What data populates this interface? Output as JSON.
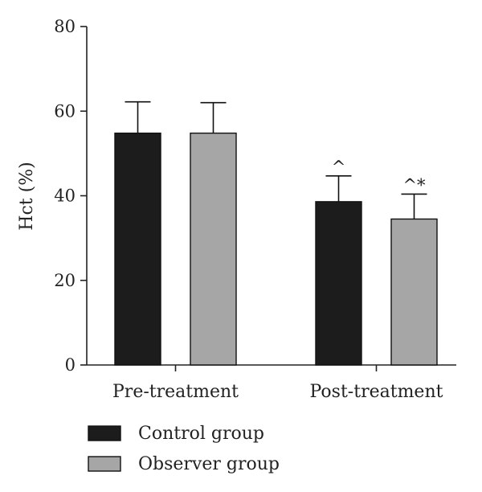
{
  "chart_data": {
    "type": "bar",
    "ylabel": "Hct (%)",
    "xlabel": "",
    "ylim": [
      0,
      80
    ],
    "yticks": [
      0,
      20,
      40,
      60,
      80
    ],
    "categories": [
      "Pre-treatment",
      "Post-treatment"
    ],
    "series": [
      {
        "name": "Control group",
        "color": "#1c1c1c",
        "values": [
          54.8,
          38.6
        ],
        "errors": [
          7.4,
          6.1
        ],
        "annotations": [
          "",
          "^"
        ]
      },
      {
        "name": "Observer group",
        "color": "#a6a6a6",
        "values": [
          54.8,
          34.5
        ],
        "errors": [
          7.2,
          5.9
        ],
        "annotations": [
          "",
          "^*"
        ]
      }
    ],
    "legend_position": "bottom-left",
    "grid": false
  }
}
